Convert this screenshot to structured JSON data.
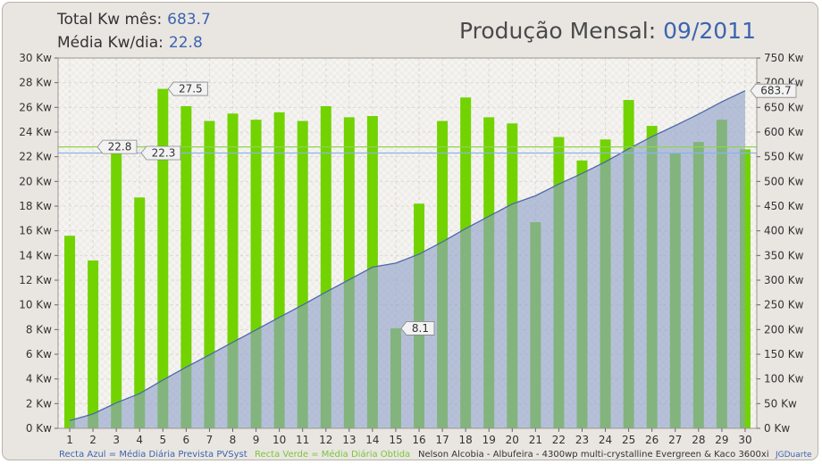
{
  "header": {
    "total_label": "Total Kw mês:",
    "total_value": "683.7",
    "avg_label": "Média Kw/dia:",
    "avg_value": "22.8",
    "title_prefix": "Produção Mensal:",
    "title_period": "09/2011"
  },
  "footer": {
    "blue_note": "Recta Azul = Média Diária Prevista PVSyst",
    "green_note": "Recta Verde = Média Diária Obtida",
    "system_note": "Nelson Alcobia - Albufeira - 4300wp multi-crystalline Evergreen & Kaco 3600xi",
    "credit": "JGDuarte"
  },
  "colors": {
    "bar_green": "#72d300",
    "bar_green_dark": "#4f9a00",
    "area_fill": "#8ea2c9",
    "area_line": "#4e68a8",
    "line_blue": "#88b5e6",
    "line_green": "#8fd450",
    "label_blue": "#3d64b0",
    "label_green": "#8fd450"
  },
  "chart_data": {
    "type": "bar",
    "categories": [
      "1",
      "2",
      "3",
      "4",
      "5",
      "6",
      "7",
      "8",
      "9",
      "10",
      "11",
      "12",
      "13",
      "14",
      "15",
      "16",
      "17",
      "18",
      "19",
      "20",
      "21",
      "22",
      "23",
      "24",
      "25",
      "26",
      "27",
      "28",
      "29",
      "30"
    ],
    "series": [
      {
        "values": [
          15.6,
          13.6,
          22.4,
          18.7,
          27.5,
          26.1,
          24.9,
          25.5,
          25.0,
          25.6,
          24.9,
          26.1,
          25.2,
          25.3,
          8.1,
          18.2,
          24.9,
          26.8,
          25.2,
          24.7,
          16.7,
          23.6,
          21.7,
          23.4,
          26.6,
          24.5,
          22.3,
          23.2,
          25.0,
          22.6
        ]
      },
      {
        "type": "area",
        "axis": "right",
        "values": [
          15.6,
          29.2,
          51.6,
          70.3,
          97.8,
          123.9,
          148.8,
          174.3,
          199.3,
          224.9,
          249.8,
          275.9,
          301.1,
          326.4,
          334.5,
          352.7,
          377.6,
          404.4,
          429.6,
          454.3,
          471.0,
          494.6,
          516.3,
          539.7,
          566.3,
          590.8,
          613.1,
          636.3,
          661.3,
          683.7
        ]
      }
    ],
    "reference_lines": [
      {
        "y": 22.8,
        "label": "22.8",
        "color": "green"
      },
      {
        "y": 22.3,
        "label": "22.3",
        "color": "blue"
      }
    ],
    "annotations": [
      {
        "x": "5",
        "label": "27.5"
      },
      {
        "x": "15",
        "label": "8.1"
      },
      {
        "x": "30",
        "label": "683.7",
        "axis": "right"
      }
    ],
    "y_left": {
      "min": 0,
      "max": 30,
      "step": 2,
      "unit": "Kw"
    },
    "y_right": {
      "min": 0,
      "max": 750,
      "step": 50,
      "unit": "Kw"
    },
    "grid": true
  }
}
